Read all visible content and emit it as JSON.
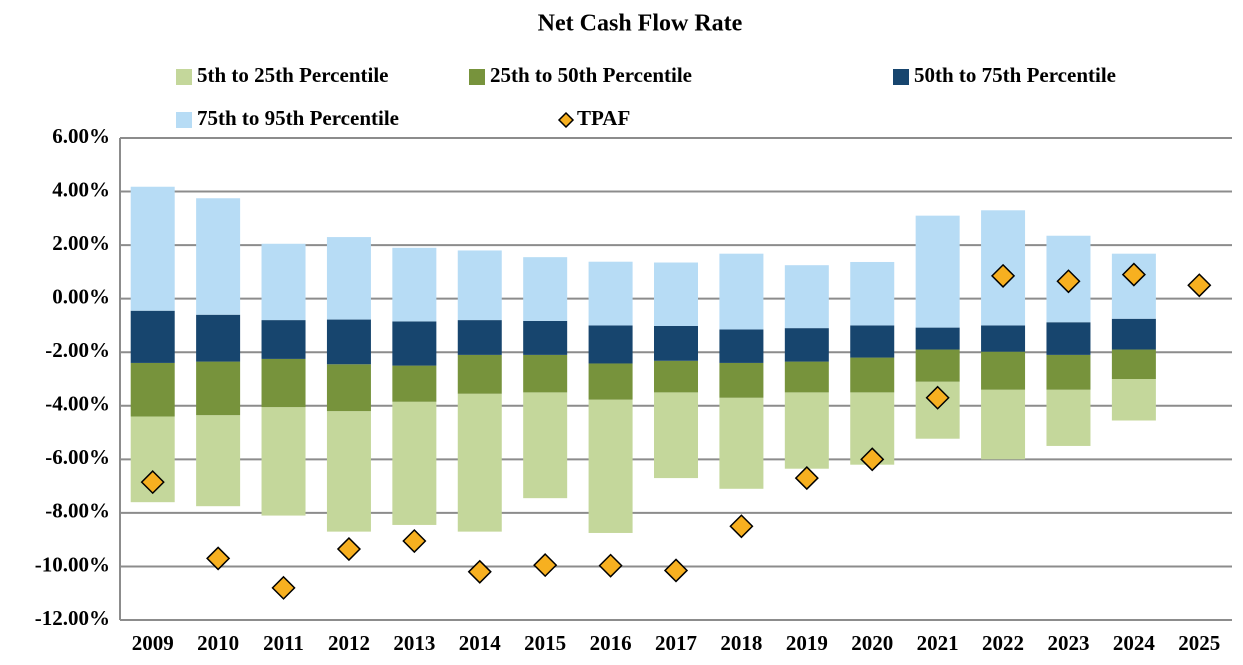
{
  "chart_data": {
    "type": "bar",
    "title": "Net Cash Flow Rate",
    "categories": [
      "2009",
      "2010",
      "2011",
      "2012",
      "2013",
      "2014",
      "2015",
      "2016",
      "2017",
      "2018",
      "2019",
      "2020",
      "2021",
      "2022",
      "2023",
      "2024",
      "2025"
    ],
    "ylim": [
      -12,
      6
    ],
    "yticks": [
      {
        "value": -12,
        "label": "-12.00%"
      },
      {
        "value": -10,
        "label": "-10.00%"
      },
      {
        "value": -8,
        "label": "-8.00%"
      },
      {
        "value": -6,
        "label": "-6.00%"
      },
      {
        "value": -4,
        "label": "-4.00%"
      },
      {
        "value": -2,
        "label": "-2.00%"
      },
      {
        "value": 0,
        "label": "0.00%"
      },
      {
        "value": 2,
        "label": "2.00%"
      },
      {
        "value": 4,
        "label": "4.00%"
      },
      {
        "value": 6,
        "label": "6.00%"
      }
    ],
    "grid": true,
    "legend": "top",
    "series": [
      {
        "name": "5th to 25th Percentile",
        "kind": "range",
        "color": "#c4d79b",
        "values": [
          [
            -7.6,
            -4.4
          ],
          [
            -7.75,
            -4.35
          ],
          [
            -8.1,
            -4.05
          ],
          [
            -8.7,
            -4.2
          ],
          [
            -8.45,
            -3.85
          ],
          [
            -8.7,
            -3.55
          ],
          [
            -7.45,
            -3.5
          ],
          [
            -8.75,
            -3.77
          ],
          [
            -6.7,
            -3.5
          ],
          [
            -7.1,
            -3.7
          ],
          [
            -6.35,
            -3.5
          ],
          [
            -6.2,
            -3.5
          ],
          [
            -5.23,
            -3.1
          ],
          [
            -6.0,
            -3.4
          ],
          [
            -5.5,
            -3.4
          ],
          [
            -4.55,
            -3.0
          ],
          null
        ]
      },
      {
        "name": "25th to 50th Percentile",
        "kind": "range",
        "color": "#77933c",
        "values": [
          [
            -4.4,
            -2.4
          ],
          [
            -4.35,
            -2.35
          ],
          [
            -4.05,
            -2.25
          ],
          [
            -4.2,
            -2.45
          ],
          [
            -3.85,
            -2.5
          ],
          [
            -3.55,
            -2.1
          ],
          [
            -3.5,
            -2.1
          ],
          [
            -3.77,
            -2.42
          ],
          [
            -3.5,
            -2.32
          ],
          [
            -3.7,
            -2.4
          ],
          [
            -3.5,
            -2.35
          ],
          [
            -3.5,
            -2.2
          ],
          [
            -3.1,
            -1.9
          ],
          [
            -3.4,
            -1.98
          ],
          [
            -3.4,
            -2.1
          ],
          [
            -3.0,
            -1.9
          ],
          null
        ]
      },
      {
        "name": "50th to 75th Percentile",
        "kind": "range",
        "color": "#17456e",
        "values": [
          [
            -2.4,
            -0.45
          ],
          [
            -2.35,
            -0.6
          ],
          [
            -2.25,
            -0.8
          ],
          [
            -2.45,
            -0.78
          ],
          [
            -2.5,
            -0.85
          ],
          [
            -2.1,
            -0.8
          ],
          [
            -2.1,
            -0.83
          ],
          [
            -2.42,
            -1.0
          ],
          [
            -2.32,
            -1.02
          ],
          [
            -2.4,
            -1.15
          ],
          [
            -2.35,
            -1.1
          ],
          [
            -2.2,
            -1.0
          ],
          [
            -1.9,
            -1.08
          ],
          [
            -1.98,
            -1.0
          ],
          [
            -2.1,
            -0.88
          ],
          [
            -1.9,
            -0.75
          ],
          null
        ]
      },
      {
        "name": "75th to 95th Percentile",
        "kind": "range",
        "color": "#b7dcf5",
        "values": [
          [
            -0.45,
            4.18
          ],
          [
            -0.6,
            3.75
          ],
          [
            -0.8,
            2.05
          ],
          [
            -0.78,
            2.3
          ],
          [
            -0.85,
            1.9
          ],
          [
            -0.8,
            1.8
          ],
          [
            -0.83,
            1.55
          ],
          [
            -1.0,
            1.38
          ],
          [
            -1.02,
            1.35
          ],
          [
            -1.15,
            1.68
          ],
          [
            -1.1,
            1.25
          ],
          [
            -1.0,
            1.37
          ],
          [
            -1.08,
            3.1
          ],
          [
            -1.0,
            3.3
          ],
          [
            -0.88,
            2.35
          ],
          [
            -0.75,
            1.68
          ],
          null
        ]
      },
      {
        "name": "TPAF",
        "kind": "marker",
        "color": "#f7b020",
        "values": [
          -6.85,
          -9.7,
          -10.8,
          -9.35,
          -9.05,
          -10.2,
          -9.95,
          -9.97,
          -10.15,
          -8.5,
          -6.7,
          -6.0,
          -3.7,
          0.85,
          0.65,
          0.9,
          0.5
        ]
      }
    ]
  }
}
